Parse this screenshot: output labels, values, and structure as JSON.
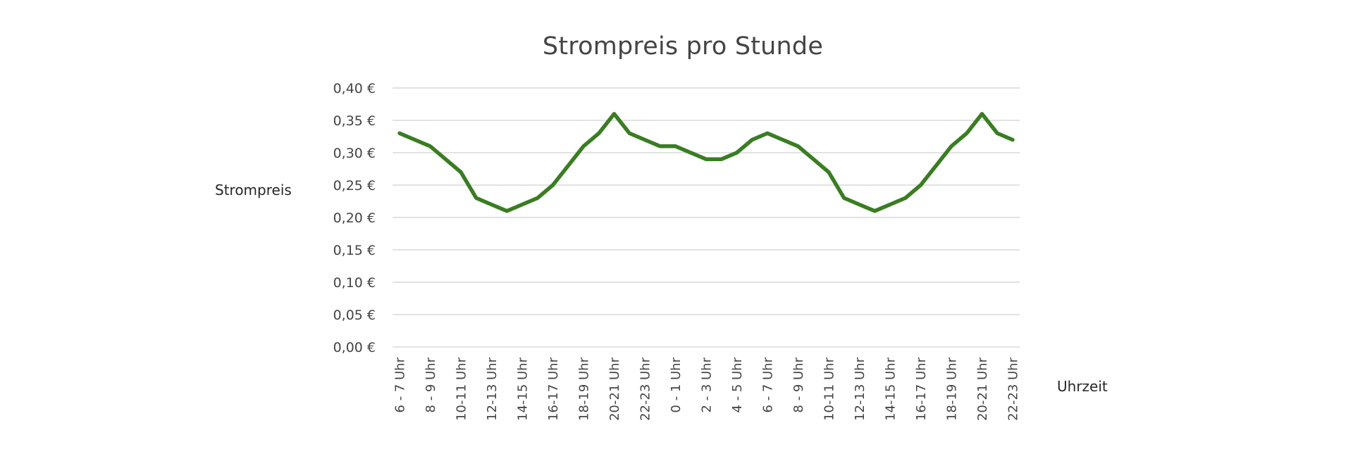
{
  "chart_data": {
    "type": "line",
    "title": "Strompreis pro Stunde",
    "xlabel": "Uhrzeit",
    "ylabel": "Strompreis",
    "ylim": [
      0,
      0.4
    ],
    "y_ticks": [
      "0,00 €",
      "0,05 €",
      "0,10 €",
      "0,15 €",
      "0,20 €",
      "0,25 €",
      "0,30 €",
      "0,35 €",
      "0,40 €"
    ],
    "y_tick_values": [
      0,
      0.05,
      0.1,
      0.15,
      0.2,
      0.25,
      0.3,
      0.35,
      0.4
    ],
    "x_tick_labels": [
      "6 - 7 Uhr",
      "8 - 9 Uhr",
      "10-11 Uhr",
      "12-13 Uhr",
      "14-15 Uhr",
      "16-17 Uhr",
      "18-19 Uhr",
      "20-21 Uhr",
      "22-23 Uhr",
      "0 - 1 Uhr",
      "2 - 3 Uhr",
      "4 - 5 Uhr",
      "6 - 7 Uhr",
      "8 - 9 Uhr",
      "10-11 Uhr",
      "12-13 Uhr",
      "14-15 Uhr",
      "16-17 Uhr",
      "18-19 Uhr",
      "20-21 Uhr",
      "22-23 Uhr"
    ],
    "x_tick_every": 2,
    "grid": true,
    "legend": null,
    "series": [
      {
        "name": "Strompreis",
        "color": "#3a7d23",
        "values": [
          0.33,
          0.32,
          0.31,
          0.29,
          0.27,
          0.23,
          0.22,
          0.21,
          0.22,
          0.23,
          0.25,
          0.28,
          0.31,
          0.33,
          0.36,
          0.33,
          0.32,
          0.31,
          0.31,
          0.3,
          0.29,
          0.29,
          0.3,
          0.32,
          0.33,
          0.32,
          0.31,
          0.29,
          0.27,
          0.23,
          0.22,
          0.21,
          0.22,
          0.23,
          0.25,
          0.28,
          0.31,
          0.33,
          0.36,
          0.33,
          0.32
        ]
      }
    ]
  },
  "colors": {
    "line": "#3a7d23",
    "grid": "#d9d9d9",
    "text": "#444444"
  }
}
